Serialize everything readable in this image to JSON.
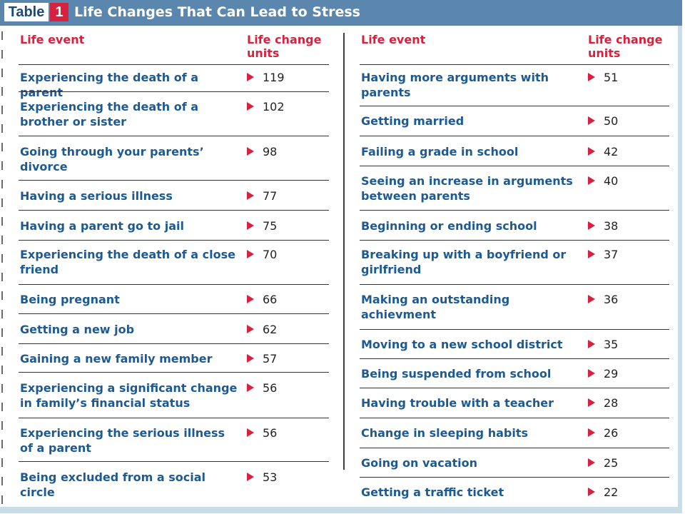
{
  "title": {
    "label": "Table",
    "number": "1",
    "text": "Life Changes That Can Lead to Stress"
  },
  "colors": {
    "title_bar": "#5b86ad",
    "accent_red": "#d6213f",
    "event_text": "#1d5a93",
    "border_light": "#c9dde9"
  },
  "icons": {
    "row_marker": "red-triangle-icon"
  },
  "chart_data": {
    "type": "table",
    "columns": [
      "Life event",
      "Life change units"
    ],
    "left_rows": [
      {
        "event": "Experiencing the death of a parent",
        "units": 119
      },
      {
        "event": "Experiencing the death of a brother or sister",
        "units": 102
      },
      {
        "event": "Going through your parents’ divorce",
        "units": 98
      },
      {
        "event": "Having a serious illness",
        "units": 77
      },
      {
        "event": "Having a parent go to jail",
        "units": 75
      },
      {
        "event": "Experiencing the death of a close friend",
        "units": 70
      },
      {
        "event": "Being pregnant",
        "units": 66
      },
      {
        "event": "Getting a new job",
        "units": 62
      },
      {
        "event": "Gaining a new family member",
        "units": 57
      },
      {
        "event": "Experiencing a significant change in family’s financial status",
        "units": 56
      },
      {
        "event": "Experiencing the serious illness of a parent",
        "units": 56
      },
      {
        "event": "Being excluded from a social circle",
        "units": 53
      }
    ],
    "right_rows": [
      {
        "event": "Having more arguments with parents",
        "units": 51
      },
      {
        "event": "Getting married",
        "units": 50
      },
      {
        "event": "Failing a grade in school",
        "units": 42
      },
      {
        "event": "Seeing an increase in arguments between parents",
        "units": 40
      },
      {
        "event": "Beginning or ending school",
        "units": 38
      },
      {
        "event": "Breaking up with a boyfriend or girlfriend",
        "units": 37
      },
      {
        "event": "Making an outstanding achievment",
        "units": 36
      },
      {
        "event": "Moving to a new school district",
        "units": 35
      },
      {
        "event": "Being suspended from school",
        "units": 29
      },
      {
        "event": "Having trouble with a teacher",
        "units": 28
      },
      {
        "event": "Change in sleeping habits",
        "units": 26
      },
      {
        "event": "Going on vacation",
        "units": 25
      },
      {
        "event": "Getting a traffic ticket",
        "units": 22
      }
    ]
  }
}
